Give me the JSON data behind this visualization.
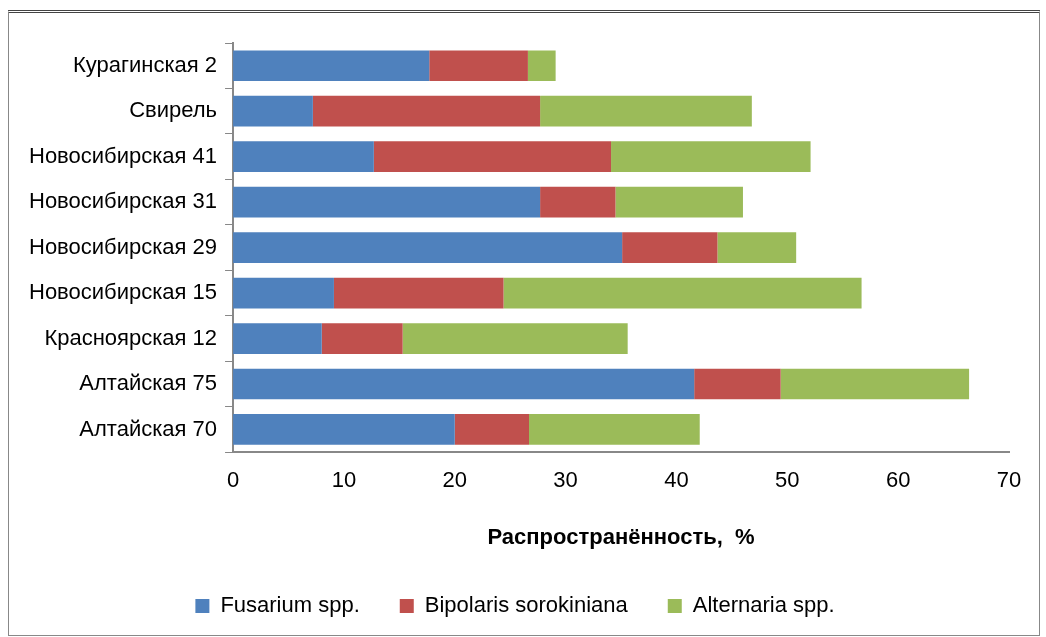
{
  "chart_data": {
    "type": "bar",
    "orientation": "horizontal",
    "stacked": true,
    "categories": [
      "Курагинская 2",
      "Свирель",
      "Новосибирская 41",
      "Новосибирская 31",
      "Новосибирская 29",
      "Новосибирская 15",
      "Красноярская 12",
      "Алтайская 75",
      "Алтайская 70"
    ],
    "series": [
      {
        "name": "Fusarium spp.",
        "color": "#4f81bd",
        "values": [
          17.7,
          7.2,
          12.7,
          27.7,
          35.1,
          9.1,
          8.0,
          41.6,
          20.0
        ]
      },
      {
        "name": "Bipolaris sorokiniana",
        "color": "#c0504d",
        "values": [
          8.9,
          20.5,
          21.4,
          6.8,
          8.6,
          15.3,
          7.3,
          7.8,
          6.7
        ]
      },
      {
        "name": "Alternaria spp.",
        "color": "#9bbb59",
        "values": [
          2.5,
          19.1,
          18.0,
          11.5,
          7.1,
          32.3,
          20.3,
          17.0,
          15.4
        ]
      }
    ],
    "xlabel": "Распространённость,  %",
    "xlim": [
      0,
      70
    ],
    "xticks": [
      0,
      10,
      20,
      30,
      40,
      50,
      60,
      70
    ],
    "grid": false,
    "legend": "bottom"
  }
}
